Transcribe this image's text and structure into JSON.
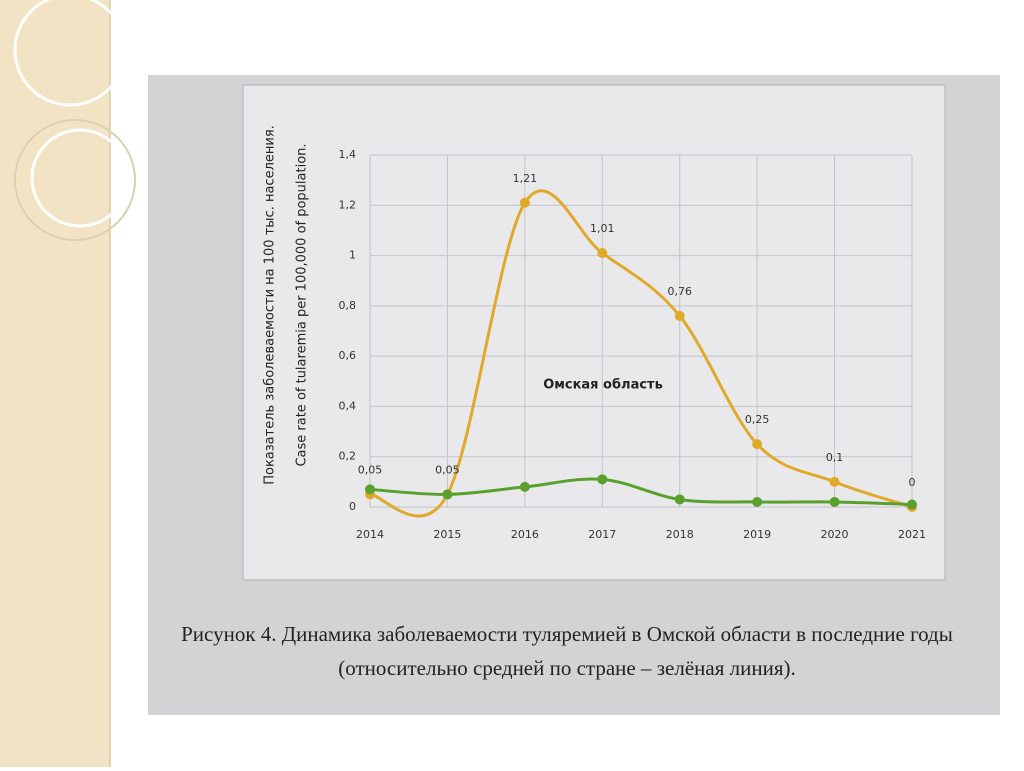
{
  "chart_data": {
    "type": "line",
    "ylabel": [
      "Показатель заболеваемости на 100 тыс. населения.",
      "Case rate of tularemia per 100,000 of population."
    ],
    "annotation": "Омская область",
    "caption": [
      "Рисунок 4. Динамика заболеваемости туляремией в Омской области в последние годы",
      "(относительно средней по стране – зелёная линия)."
    ],
    "categories": [
      "2014",
      "2015",
      "2016",
      "2017",
      "2018",
      "2019",
      "2020",
      "2021"
    ],
    "series": [
      {
        "color": "#e0a92a",
        "values": [
          0.05,
          0.05,
          1.21,
          1.01,
          0.76,
          0.25,
          0.1,
          0
        ],
        "value_labels": [
          "0,05",
          "0,05",
          "1,21",
          "1,01",
          "0,76",
          "0,25",
          "0,1",
          "0"
        ]
      },
      {
        "color": "#5aa02c",
        "values": [
          0.07,
          0.05,
          0.08,
          0.11,
          0.03,
          0.02,
          0.02,
          0.01
        ]
      }
    ],
    "ylim": [
      0,
      1.4
    ],
    "yticks": [
      0,
      {
        "value": 0.2,
        "label": "0,2"
      },
      {
        "value": 0.4,
        "label": "0,4"
      },
      {
        "value": 0.6,
        "label": "0,6"
      },
      {
        "value": 0.8,
        "label": "0,8"
      },
      1,
      {
        "value": 1.2,
        "label": "1,2"
      },
      {
        "value": 1.4,
        "label": "1,4"
      }
    ],
    "grid": true,
    "smooth": true
  }
}
